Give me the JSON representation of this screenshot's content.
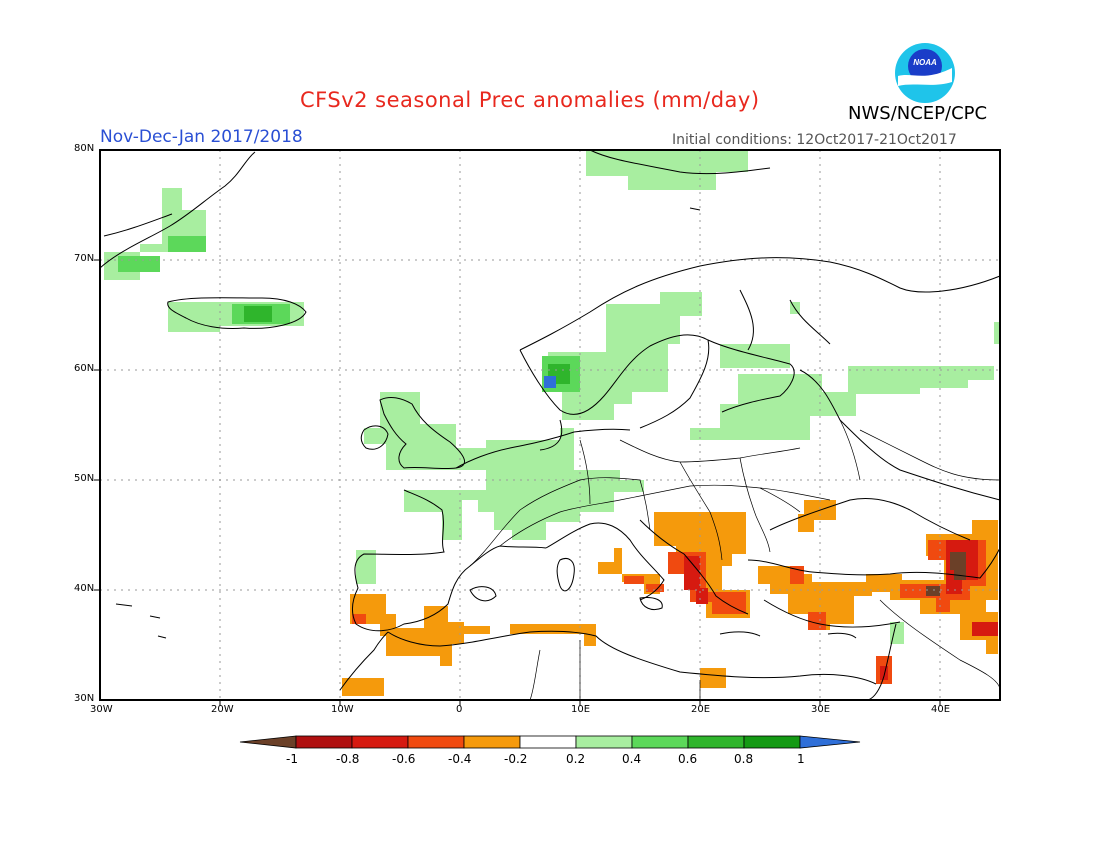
{
  "header": {
    "title": "CFSv2 seasonal Prec anomalies (mm/day)",
    "season": "Nov-Dec-Jan 2017/2018",
    "initial_conditions": "Initial conditions: 12Oct2017-21Oct2017",
    "agency": "NWS/NCEP/CPC",
    "logo_text": "NOAA",
    "logo_colors": {
      "outer": "#1fc4ea",
      "inner": "#1a3dc8",
      "bird": "#ffffff"
    }
  },
  "map": {
    "lon_range": [
      -30,
      45
    ],
    "lat_range": [
      30,
      80
    ],
    "lon_ticks": [
      "30W",
      "20W",
      "10W",
      "0",
      "10E",
      "20E",
      "30E",
      "40E"
    ],
    "lat_ticks": [
      "30N",
      "40N",
      "50N",
      "60N",
      "70N",
      "80N"
    ],
    "grid": "dotted",
    "coastline_color": "#000000"
  },
  "colorbar": {
    "labels": [
      "-1",
      "-0.8",
      "-0.6",
      "-0.4",
      "-0.2",
      "0.2",
      "0.4",
      "0.6",
      "0.8",
      "1"
    ],
    "below_color": "#6b4028",
    "above_color": "#2f6fd8",
    "bins": [
      "#b01010",
      "#d61a10",
      "#f04a10",
      "#f59a0c",
      "#ffffff",
      "#a8eea0",
      "#5cd85a",
      "#2fb52c",
      "#149a14"
    ]
  }
}
